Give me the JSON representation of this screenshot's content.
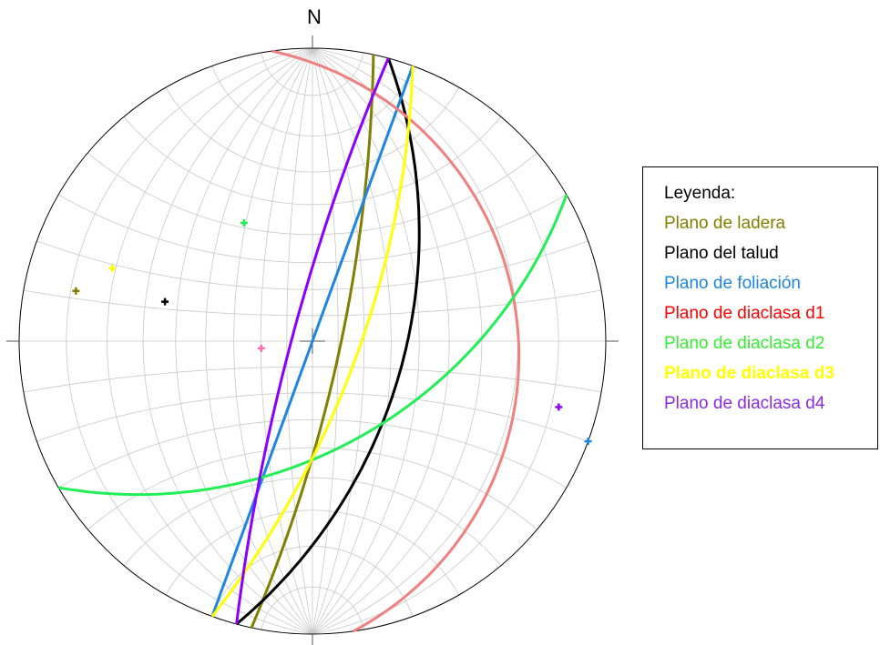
{
  "north_label": "N",
  "legend": {
    "title": "Leyenda:",
    "items": [
      {
        "key": "ladera",
        "label": "Plano de ladera",
        "color": "#808000"
      },
      {
        "key": "talud",
        "label": "Plano del talud",
        "color": "#000000"
      },
      {
        "key": "foliacion",
        "label": "Plano de foliación",
        "color": "#1e86e0"
      },
      {
        "key": "d1",
        "label": "Plano de diaclasa d1",
        "color": "#ff0000"
      },
      {
        "key": "d2",
        "label": "Plano de diaclasa d2",
        "color": "#33ee33"
      },
      {
        "key": "d3",
        "label": "Plano de diaclasa d3",
        "color": "#ffff00"
      },
      {
        "key": "d4",
        "label": "Plano de diaclasa d4",
        "color": "#8a2be2"
      }
    ]
  },
  "planes": [
    {
      "key": "ladera",
      "name": "ladera-plane",
      "strike": 12,
      "dip": 79,
      "color": "#808000",
      "pole_color": "#808000"
    },
    {
      "key": "talud",
      "name": "talud-plane",
      "strike": 15,
      "dip": 55,
      "color": "#000000",
      "pole_color": "#000000"
    },
    {
      "key": "foliacion",
      "name": "foliacion-plane",
      "strike": 200,
      "dip": 90,
      "color": "#1e86e0",
      "pole_color": "#1e86e0"
    },
    {
      "key": "d1",
      "name": "d1-plane",
      "strike": 352,
      "dip": 20,
      "color": "#f08080",
      "pole_color": "#ff69b4"
    },
    {
      "key": "d2",
      "name": "d2-plane",
      "strike": 60,
      "dip": 50,
      "color": "#22ee55",
      "pole_color": "#22ee55"
    },
    {
      "key": "d3",
      "name": "d3-plane",
      "strike": 20,
      "dip": 72,
      "color": "#ffff00",
      "pole_color": "#ffff00"
    },
    {
      "key": "d4",
      "name": "d4-plane",
      "strike": 195,
      "dip": 82,
      "color": "#8a00ff",
      "pole_color": "#8a00ff"
    }
  ],
  "net": {
    "type": "equal-angle",
    "grid_step_deg": 10
  }
}
